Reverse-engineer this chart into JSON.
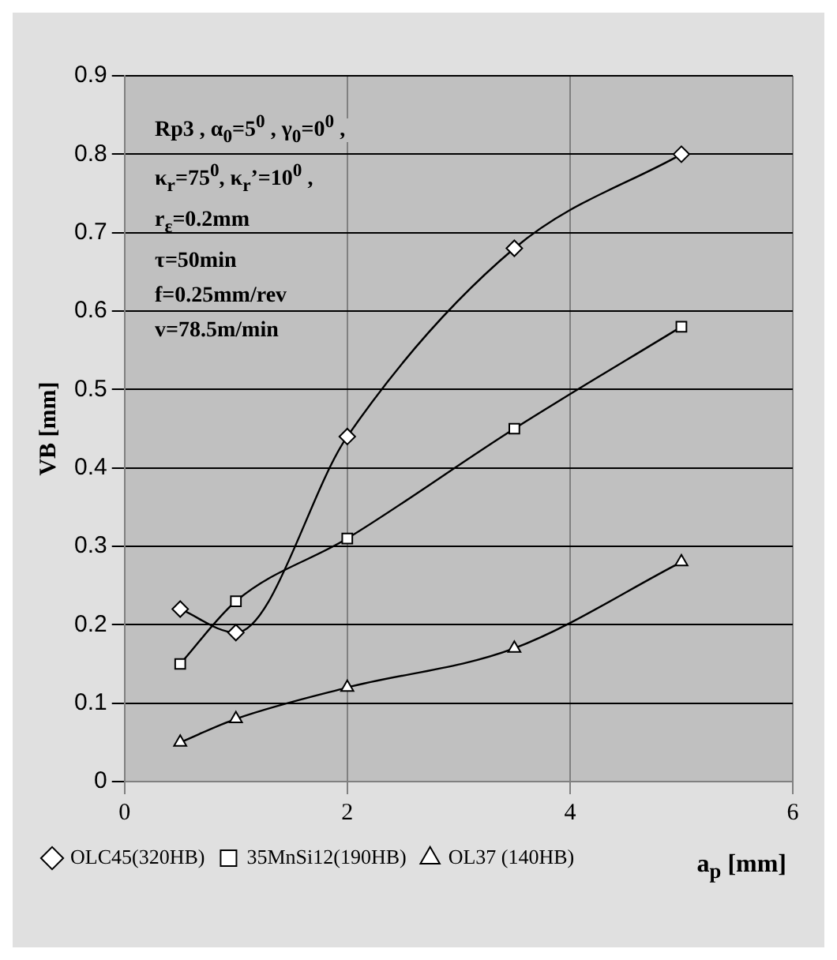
{
  "chart_data": {
    "type": "line",
    "xlabel": "a$_{p}$ [mm]",
    "ylabel": "VB [mm]",
    "annotations": [
      "Rp3 , α$_{0}$=5$^{0}$ , γ$_{0}$=0$^{0}$ ,",
      "κ$_{r}$=75$^{0}$, κ$_{r}$’=10$^{0}$ ,",
      "r$_{ε}$=0.2mm",
      "τ=50min",
      "f=0.25mm/rev",
      "v=78.5m/min"
    ],
    "x": [
      0.5,
      1,
      2,
      3.5,
      5
    ],
    "series": [
      {
        "name": "OLC45(320HB)",
        "color": "#000000",
        "marker": "diamond",
        "values": [
          0.22,
          0.19,
          0.44,
          0.68,
          0.8
        ]
      },
      {
        "name": "35MnSi12(190HB)",
        "color": "#000000",
        "marker": "square",
        "values": [
          0.15,
          0.23,
          0.31,
          0.45,
          0.58
        ]
      },
      {
        "name": "OL37 (140HB)",
        "color": "#000000",
        "marker": "triangle",
        "values": [
          0.05,
          0.08,
          0.12,
          0.17,
          0.28
        ]
      }
    ],
    "xlim": [
      0,
      6
    ],
    "xticks": [
      0,
      2,
      4,
      6
    ],
    "ylim": [
      0,
      0.9
    ],
    "yticks": [
      0,
      0.1,
      0.2,
      0.3,
      0.4,
      0.5,
      0.6,
      0.7,
      0.8,
      0.9
    ],
    "grid": true,
    "legend": "bottom"
  }
}
